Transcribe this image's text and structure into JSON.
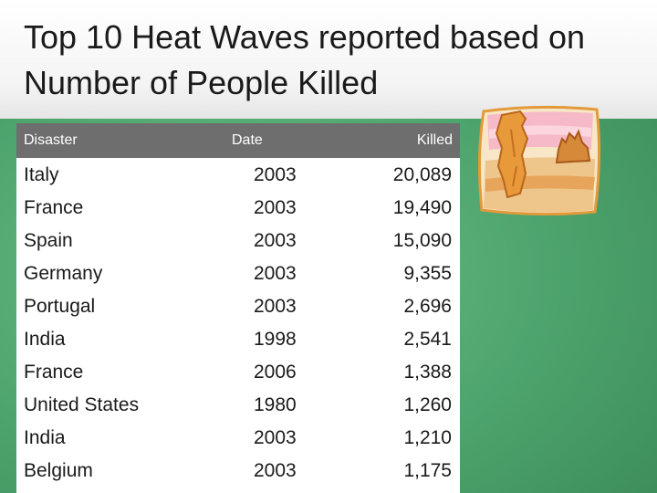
{
  "title": "Top 10 Heat Waves reported based on Number of People Killed",
  "table": {
    "headers": {
      "disaster": "Disaster",
      "date": "Date",
      "killed": "Killed"
    },
    "rows": [
      {
        "disaster": "Italy",
        "date": "2003",
        "killed": "20,089"
      },
      {
        "disaster": "France",
        "date": "2003",
        "killed": "19,490"
      },
      {
        "disaster": "Spain",
        "date": "2003",
        "killed": "15,090"
      },
      {
        "disaster": "Germany",
        "date": "2003",
        "killed": "9,355"
      },
      {
        "disaster": "Portugal",
        "date": "2003",
        "killed": "2,696"
      },
      {
        "disaster": "India",
        "date": "1998",
        "killed": "2,541"
      },
      {
        "disaster": "France",
        "date": "2006",
        "killed": "1,388"
      },
      {
        "disaster": "United States",
        "date": "1980",
        "killed": "1,260"
      },
      {
        "disaster": "India",
        "date": "2003",
        "killed": "1,210"
      },
      {
        "disaster": "Belgium",
        "date": "2003",
        "killed": "1,175"
      }
    ]
  },
  "decoration": {
    "icon": "desert-mesa-icon"
  },
  "colors": {
    "header_bg": "#6e6e6e",
    "background_green": "#4ea46d"
  }
}
